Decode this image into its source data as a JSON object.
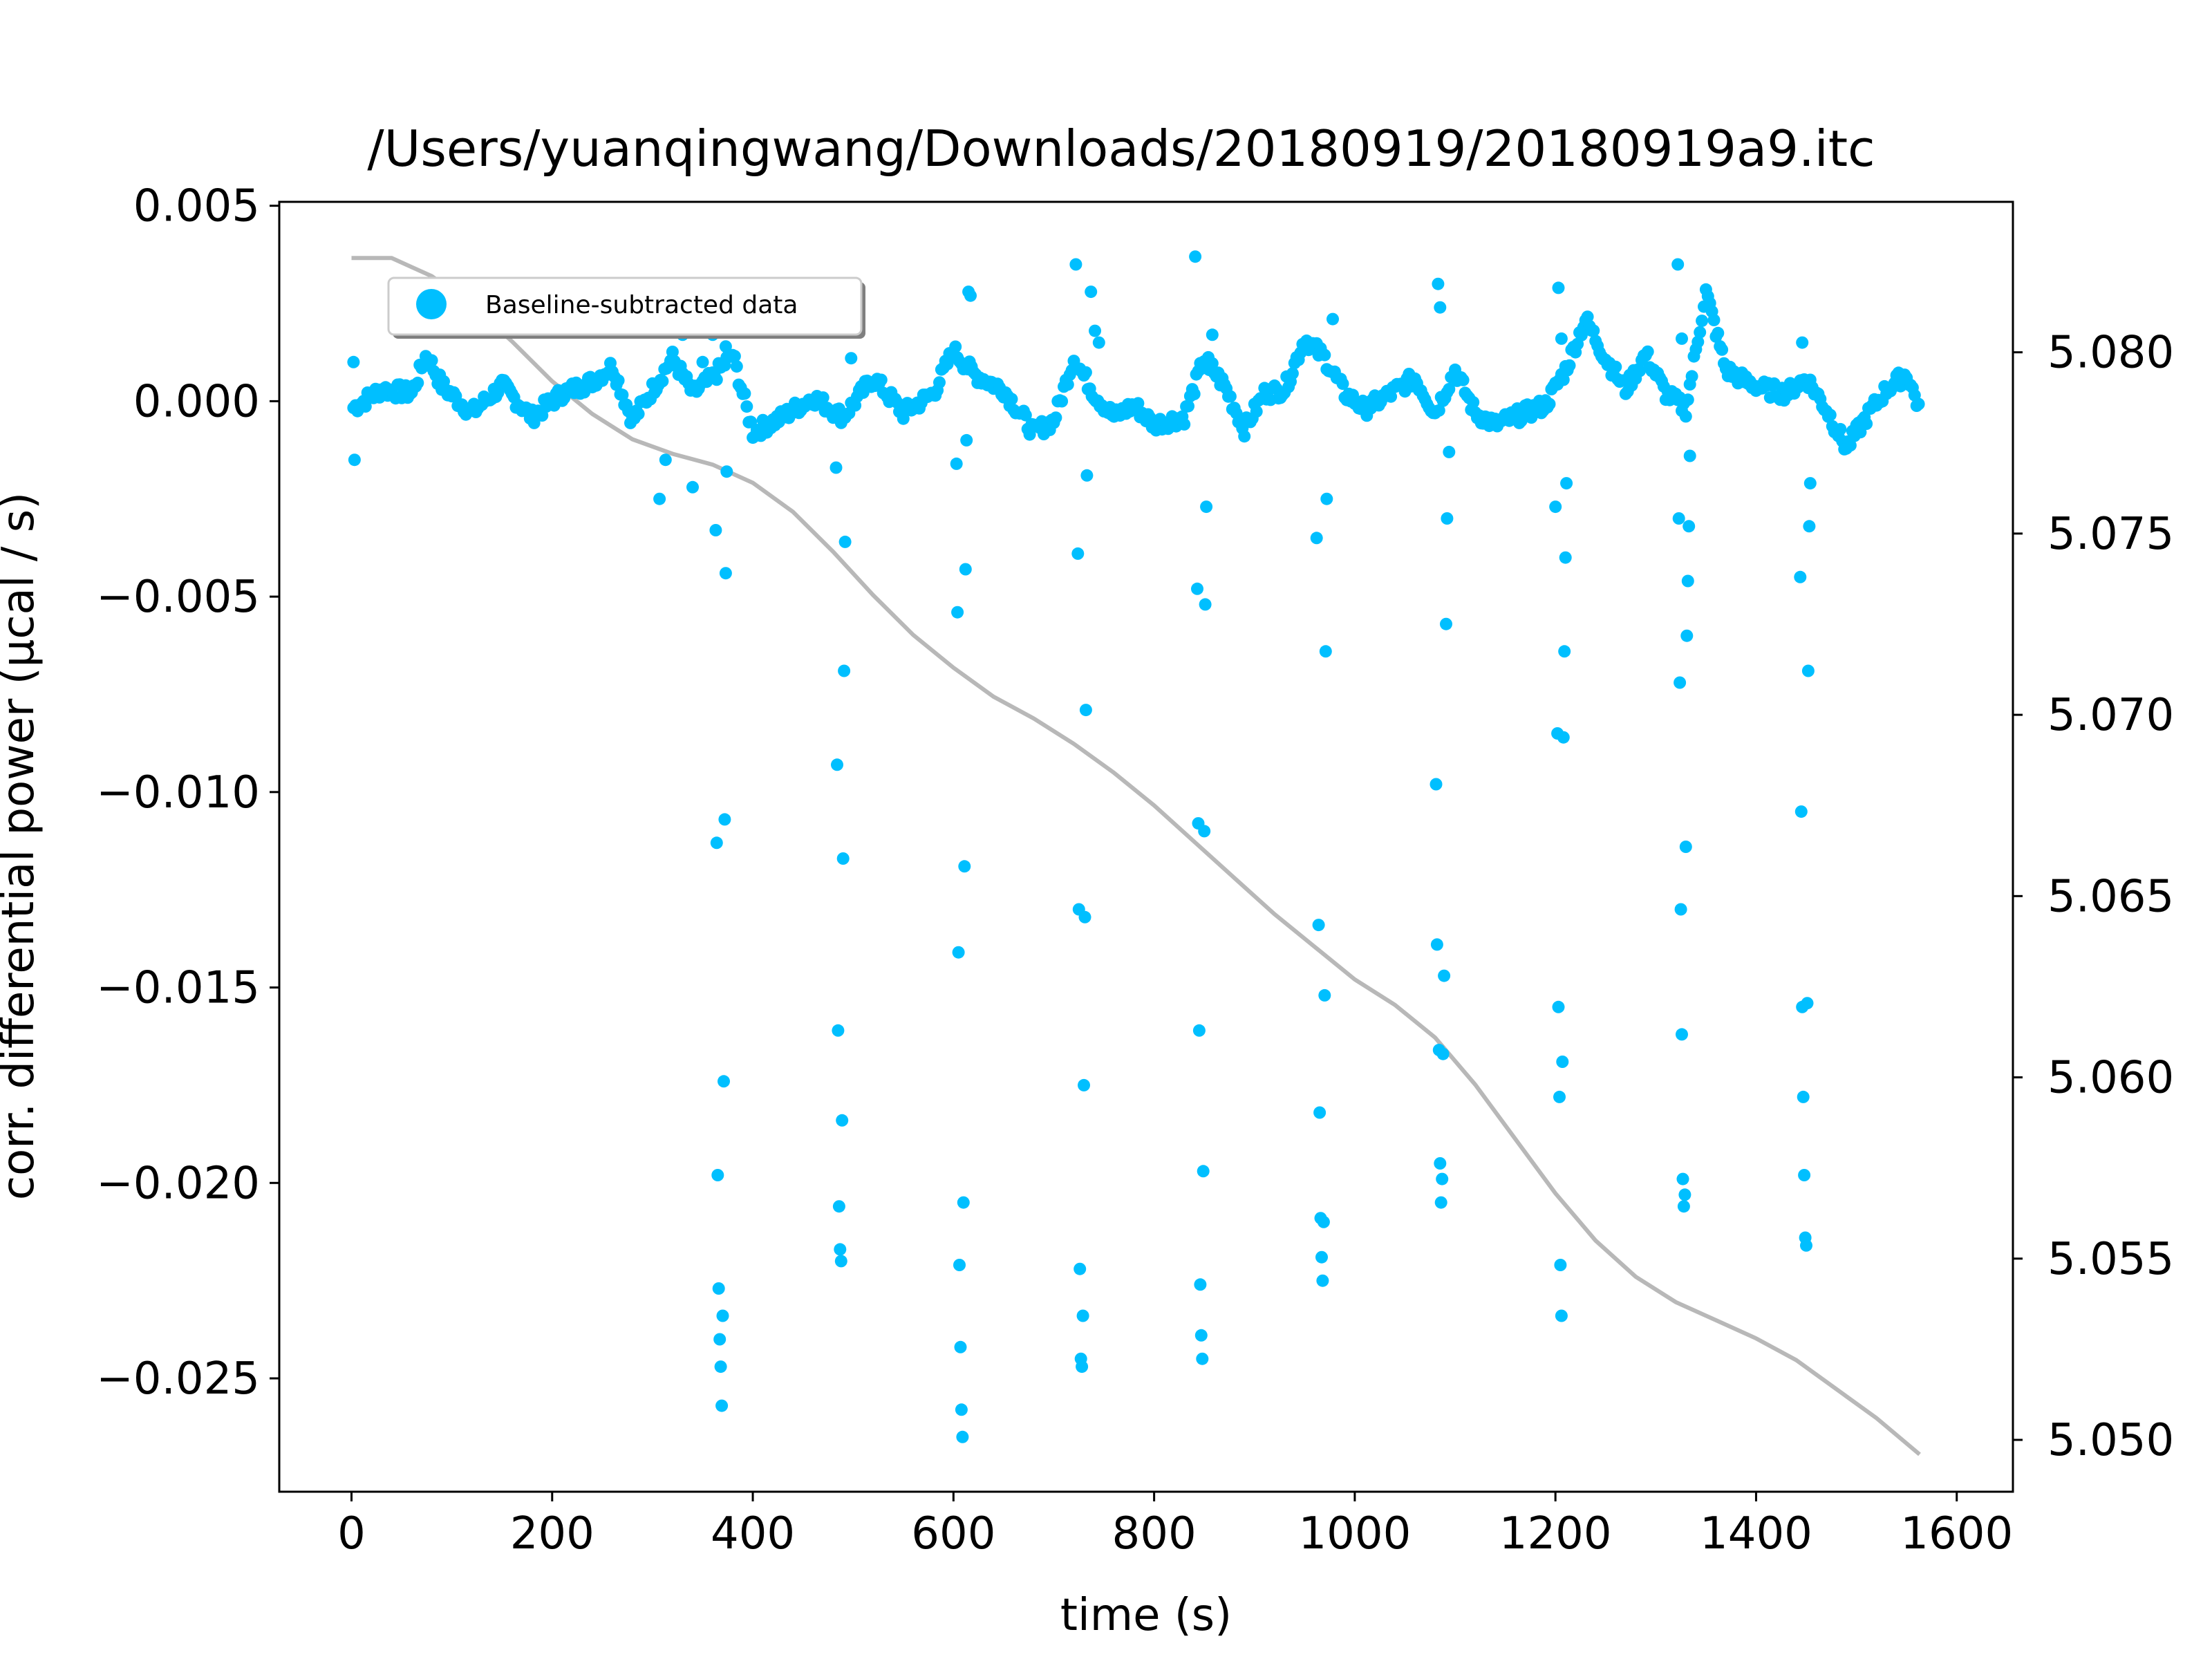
{
  "chart_data": {
    "type": "scatter",
    "title": "/Users/yuanqingwang/Downloads/20180919/20180919a9.itc",
    "xlabel": "time (s)",
    "ylabel": "corr. differential power (µcal / s)",
    "y2label": "",
    "xlim": [
      -72,
      1656
    ],
    "ylim": [
      -0.0279,
      0.0051
    ],
    "y2lim": [
      5.04857,
      5.08415
    ],
    "xticks": [
      0,
      200,
      400,
      600,
      800,
      1000,
      1200,
      1400,
      1600
    ],
    "xtick_labels": [
      "0",
      "200",
      "400",
      "600",
      "800",
      "1000",
      "1200",
      "1400",
      "1600"
    ],
    "yticks": [
      0.005,
      0.0,
      -0.005,
      -0.01,
      -0.015,
      -0.02,
      -0.025
    ],
    "ytick_labels": [
      "0.005",
      "0.000",
      "−0.005",
      "−0.010",
      "−0.015",
      "−0.020",
      "−0.025"
    ],
    "y2ticks": [
      5.08,
      5.075,
      5.07,
      5.065,
      5.06,
      5.055,
      5.05
    ],
    "y2tick_labels": [
      "5.080",
      "5.075",
      "5.070",
      "5.065",
      "5.060",
      "5.055",
      "5.050"
    ],
    "grid": false,
    "legend": {
      "position": "upper-left",
      "entries": [
        "Baseline-subtracted data"
      ]
    },
    "colors": {
      "data": "#00bfff",
      "smooth_line": "#b0b0b0"
    },
    "baseline_seed": [
      [
        0,
        -0.0002
      ],
      [
        30,
        0.0003
      ],
      [
        60,
        0.0002
      ],
      [
        75,
        0.0012
      ],
      [
        90,
        0.0004
      ],
      [
        120,
        -0.0003
      ],
      [
        150,
        0.0004
      ],
      [
        180,
        -0.0004
      ],
      [
        210,
        0.0002
      ],
      [
        240,
        0.0005
      ],
      [
        260,
        0.0009
      ],
      [
        280,
        -0.0005
      ],
      [
        300,
        0.0003
      ],
      [
        320,
        0.0011
      ],
      [
        340,
        0.0002
      ],
      [
        360,
        0.0006
      ],
      [
        380,
        0.0012
      ],
      [
        400,
        -0.0008
      ],
      [
        430,
        -0.0004
      ],
      [
        460,
        0.0001
      ],
      [
        490,
        -0.0004
      ],
      [
        520,
        0.0006
      ],
      [
        550,
        -0.0003
      ],
      [
        580,
        0.0002
      ],
      [
        600,
        0.0013
      ],
      [
        620,
        0.0007
      ],
      [
        650,
        0.0003
      ],
      [
        680,
        -0.0008
      ],
      [
        700,
        -0.0005
      ],
      [
        720,
        0.0011
      ],
      [
        740,
        0.0002
      ],
      [
        760,
        -0.0004
      ],
      [
        780,
        -0.0001
      ],
      [
        800,
        -0.0006
      ],
      [
        830,
        -0.0004
      ],
      [
        850,
        0.0011
      ],
      [
        870,
        0.0004
      ],
      [
        890,
        -0.0007
      ],
      [
        910,
        0.0002
      ],
      [
        930,
        0.0003
      ],
      [
        950,
        0.0016
      ],
      [
        970,
        0.0011
      ],
      [
        990,
        0.0002
      ],
      [
        1010,
        -0.0002
      ],
      [
        1030,
        0.0001
      ],
      [
        1060,
        0.0006
      ],
      [
        1080,
        -0.0003
      ],
      [
        1100,
        0.0008
      ],
      [
        1120,
        -0.0003
      ],
      [
        1140,
        -0.0006
      ],
      [
        1160,
        -0.0004
      ],
      [
        1190,
        -0.0001
      ],
      [
        1210,
        0.0008
      ],
      [
        1230,
        0.0021
      ],
      [
        1250,
        0.0011
      ],
      [
        1270,
        0.0003
      ],
      [
        1290,
        0.0012
      ],
      [
        1310,
        0.0002
      ],
      [
        1330,
        -0.0002
      ],
      [
        1350,
        0.0028
      ],
      [
        1370,
        0.0008
      ],
      [
        1390,
        0.0005
      ],
      [
        1410,
        0.0003
      ],
      [
        1430,
        0.0002
      ],
      [
        1450,
        0.0006
      ],
      [
        1470,
        -0.0002
      ],
      [
        1490,
        -0.0012
      ],
      [
        1510,
        -0.0004
      ],
      [
        1530,
        0.0003
      ],
      [
        1550,
        0.0007
      ],
      [
        1563,
        -0.0002
      ]
    ],
    "spike_points": [
      [
        2,
        0.001
      ],
      [
        3,
        -0.0015
      ],
      [
        330,
        0.0017
      ],
      [
        340,
        -0.0022
      ],
      [
        350,
        0.001
      ],
      [
        360,
        0.0017
      ],
      [
        373,
        0.0014
      ],
      [
        307,
        -0.0025
      ],
      [
        313,
        -0.0015
      ],
      [
        363,
        -0.0033
      ],
      [
        364,
        -0.0113
      ],
      [
        365,
        -0.0198
      ],
      [
        366,
        -0.0227
      ],
      [
        367,
        -0.024
      ],
      [
        368,
        -0.0247
      ],
      [
        369,
        -0.0257
      ],
      [
        370,
        -0.0234
      ],
      [
        371,
        -0.0174
      ],
      [
        372,
        -0.0107
      ],
      [
        373,
        -0.0044
      ],
      [
        374,
        -0.0018
      ],
      [
        483,
        -0.0017
      ],
      [
        484,
        -0.0093
      ],
      [
        485,
        -0.0161
      ],
      [
        486,
        -0.0206
      ],
      [
        487,
        -0.0217
      ],
      [
        488,
        -0.022
      ],
      [
        489,
        -0.0184
      ],
      [
        490,
        -0.0117
      ],
      [
        491,
        -0.0069
      ],
      [
        492,
        -0.0036
      ],
      [
        498,
        0.0011
      ],
      [
        603,
        -0.0016
      ],
      [
        604,
        -0.0054
      ],
      [
        605,
        -0.0141
      ],
      [
        606,
        -0.0221
      ],
      [
        607,
        -0.0242
      ],
      [
        608,
        -0.0258
      ],
      [
        609,
        -0.0265
      ],
      [
        610,
        -0.0205
      ],
      [
        611,
        -0.0119
      ],
      [
        612,
        -0.0043
      ],
      [
        613,
        -0.001
      ],
      [
        615,
        0.0028
      ],
      [
        617,
        0.0027
      ],
      [
        722,
        0.0035
      ],
      [
        724,
        -0.0039
      ],
      [
        725,
        -0.013
      ],
      [
        726,
        -0.0222
      ],
      [
        727,
        -0.0245
      ],
      [
        728,
        -0.0247
      ],
      [
        729,
        -0.0234
      ],
      [
        730,
        -0.0175
      ],
      [
        731,
        -0.0132
      ],
      [
        732,
        -0.0079
      ],
      [
        733,
        -0.0019
      ],
      [
        737,
        0.0028
      ],
      [
        741,
        0.0018
      ],
      [
        745,
        0.0015
      ],
      [
        841,
        0.0037
      ],
      [
        843,
        -0.0048
      ],
      [
        844,
        -0.0108
      ],
      [
        845,
        -0.0161
      ],
      [
        846,
        -0.0226
      ],
      [
        847,
        -0.0239
      ],
      [
        848,
        -0.0245
      ],
      [
        849,
        -0.0197
      ],
      [
        850,
        -0.011
      ],
      [
        851,
        -0.0052
      ],
      [
        852,
        -0.0027
      ],
      [
        855,
        0.0008
      ],
      [
        858,
        0.0017
      ],
      [
        962,
        -0.0035
      ],
      [
        964,
        -0.0134
      ],
      [
        965,
        -0.0182
      ],
      [
        966,
        -0.0209
      ],
      [
        967,
        -0.0219
      ],
      [
        968,
        -0.0225
      ],
      [
        969,
        -0.021
      ],
      [
        970,
        -0.0152
      ],
      [
        971,
        -0.0064
      ],
      [
        972,
        -0.0025
      ],
      [
        978,
        0.0021
      ],
      [
        1081,
        -0.0098
      ],
      [
        1082,
        -0.0139
      ],
      [
        1084,
        -0.0166
      ],
      [
        1085,
        -0.0195
      ],
      [
        1086,
        -0.0205
      ],
      [
        1087,
        -0.0199
      ],
      [
        1088,
        -0.0167
      ],
      [
        1089,
        -0.0147
      ],
      [
        1091,
        -0.0057
      ],
      [
        1092,
        -0.003
      ],
      [
        1094,
        -0.0013
      ],
      [
        1083,
        0.003
      ],
      [
        1085,
        0.0024
      ],
      [
        1200,
        -0.0027
      ],
      [
        1202,
        -0.0085
      ],
      [
        1203,
        -0.0155
      ],
      [
        1204,
        -0.0178
      ],
      [
        1205,
        -0.0221
      ],
      [
        1206,
        -0.0234
      ],
      [
        1207,
        -0.0169
      ],
      [
        1208,
        -0.0086
      ],
      [
        1209,
        -0.0064
      ],
      [
        1210,
        -0.004
      ],
      [
        1211,
        -0.0021
      ],
      [
        1203,
        0.0029
      ],
      [
        1206,
        0.0016
      ],
      [
        1322,
        0.0035
      ],
      [
        1323,
        -0.003
      ],
      [
        1324,
        -0.0072
      ],
      [
        1325,
        -0.013
      ],
      [
        1326,
        -0.0162
      ],
      [
        1327,
        -0.0199
      ],
      [
        1328,
        -0.0206
      ],
      [
        1329,
        -0.0203
      ],
      [
        1330,
        -0.0114
      ],
      [
        1331,
        -0.006
      ],
      [
        1332,
        -0.0046
      ],
      [
        1333,
        -0.0032
      ],
      [
        1334,
        -0.0014
      ],
      [
        1326,
        0.0016
      ],
      [
        1444,
        -0.0045
      ],
      [
        1445,
        -0.0105
      ],
      [
        1446,
        -0.0155
      ],
      [
        1447,
        -0.0178
      ],
      [
        1448,
        -0.0198
      ],
      [
        1449,
        -0.0214
      ],
      [
        1450,
        -0.0216
      ],
      [
        1451,
        -0.0154
      ],
      [
        1452,
        -0.0069
      ],
      [
        1453,
        -0.0032
      ],
      [
        1454,
        -0.0021
      ],
      [
        1446,
        0.0015
      ]
    ],
    "smooth_line": {
      "x": [
        0,
        40,
        80,
        120,
        160,
        200,
        240,
        280,
        320,
        360,
        400,
        440,
        480,
        520,
        560,
        600,
        640,
        680,
        720,
        760,
        800,
        840,
        880,
        920,
        960,
        1000,
        1040,
        1080,
        1120,
        1160,
        1200,
        1240,
        1280,
        1320,
        1360,
        1400,
        1440,
        1480,
        1520,
        1563
      ],
      "y": [
        5.0826,
        5.0826,
        5.0821,
        5.0813,
        5.0803,
        5.0792,
        5.0783,
        5.0776,
        5.0772,
        5.0769,
        5.0764,
        5.0756,
        5.0745,
        5.0733,
        5.0722,
        5.0713,
        5.0705,
        5.0699,
        5.0692,
        5.0684,
        5.0675,
        5.0665,
        5.0655,
        5.0645,
        5.0636,
        5.0627,
        5.062,
        5.0611,
        5.0598,
        5.0583,
        5.0568,
        5.0555,
        5.0545,
        5.0538,
        5.0533,
        5.0528,
        5.0522,
        5.0514,
        5.0506,
        5.0496
      ]
    }
  }
}
